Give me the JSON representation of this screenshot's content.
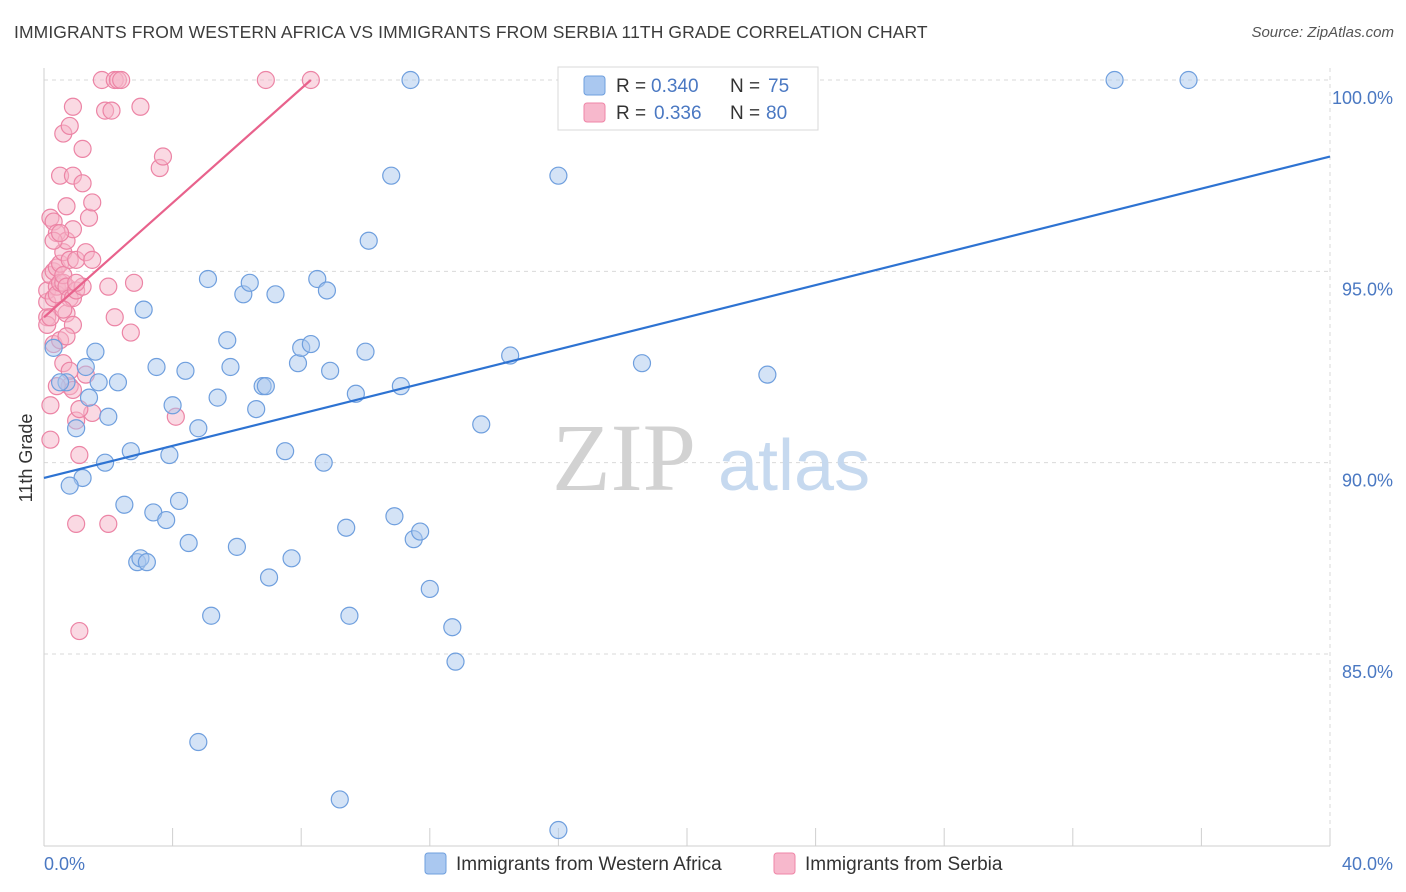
{
  "header": {
    "title": "IMMIGRANTS FROM WESTERN AFRICA VS IMMIGRANTS FROM SERBIA 11TH GRADE CORRELATION CHART",
    "source": "Source: ZipAtlas.com"
  },
  "watermark": {
    "zip": "ZIP",
    "atlas": "atlas"
  },
  "legend": {
    "rows": [
      {
        "r_label": "R = ",
        "r_value": "0.340",
        "n_label": "N = ",
        "n_value": "75",
        "color": "#aac8f0",
        "stroke": "#6f9fde"
      },
      {
        "r_label": "R = ",
        "r_value": "0.336",
        "n_label": "N = ",
        "n_value": "80",
        "color": "#f7b8cc",
        "stroke": "#ef86a7"
      }
    ]
  },
  "bottom_legend": [
    {
      "label": "Immigrants from Western Africa",
      "color": "#aac8f0",
      "stroke": "#6f9fde"
    },
    {
      "label": "Immigrants from Serbia",
      "color": "#f7b8cc",
      "stroke": "#ef86a7"
    }
  ],
  "colors": {
    "blue_fill": "#a9c7ee",
    "blue_stroke": "#6f9fde",
    "blue_line": "#2e73d2",
    "pink_fill": "#f5b3c7",
    "pink_stroke": "#ec84a5",
    "pink_line": "#e8628c",
    "grid": "#d9d9d9",
    "tick_text": "#4a78c2"
  },
  "chart_data": {
    "type": "scatter",
    "title": "IMMIGRANTS FROM WESTERN AFRICA VS IMMIGRANTS FROM SERBIA 11TH GRADE CORRELATION CHART",
    "xlabel": "",
    "ylabel": "11th Grade",
    "xlim": [
      0,
      40
    ],
    "ylim": [
      80.0,
      100.4
    ],
    "x_tick_labels": [
      "0.0%",
      "40.0%"
    ],
    "y_ticks": [
      85,
      90,
      95,
      100
    ],
    "y_tick_labels": [
      "85.0%",
      "90.0%",
      "95.0%",
      "100.0%"
    ],
    "grid": true,
    "legend_placement": "top-center",
    "series": [
      {
        "name": "Immigrants from Western Africa",
        "R": 0.34,
        "N": 75,
        "trend": {
          "x": [
            0,
            40
          ],
          "y": [
            89.6,
            98.0
          ]
        },
        "points": [
          [
            0.3,
            93.0
          ],
          [
            0.7,
            92.1
          ],
          [
            1.0,
            90.9
          ],
          [
            1.2,
            89.6
          ],
          [
            1.4,
            91.7
          ],
          [
            1.6,
            92.9
          ],
          [
            1.7,
            92.1
          ],
          [
            1.9,
            90.0
          ],
          [
            2.3,
            92.1
          ],
          [
            2.5,
            88.9
          ],
          [
            2.7,
            90.3
          ],
          [
            2.9,
            87.4
          ],
          [
            3.0,
            87.5
          ],
          [
            3.2,
            87.4
          ],
          [
            3.4,
            88.7
          ],
          [
            3.5,
            92.5
          ],
          [
            3.8,
            88.5
          ],
          [
            3.9,
            90.2
          ],
          [
            4.0,
            91.5
          ],
          [
            4.2,
            89.0
          ],
          [
            4.4,
            92.4
          ],
          [
            4.5,
            87.9
          ],
          [
            4.8,
            90.9
          ],
          [
            5.1,
            94.8
          ],
          [
            5.2,
            86.0
          ],
          [
            5.4,
            91.7
          ],
          [
            5.7,
            93.2
          ],
          [
            5.8,
            92.5
          ],
          [
            6.0,
            87.8
          ],
          [
            6.2,
            94.4
          ],
          [
            6.4,
            94.7
          ],
          [
            6.6,
            91.4
          ],
          [
            6.8,
            92.0
          ],
          [
            7.0,
            87.0
          ],
          [
            7.2,
            94.4
          ],
          [
            7.5,
            90.3
          ],
          [
            7.7,
            87.5
          ],
          [
            7.9,
            92.6
          ],
          [
            8.0,
            93.0
          ],
          [
            8.3,
            93.1
          ],
          [
            8.5,
            94.8
          ],
          [
            8.7,
            90.0
          ],
          [
            8.8,
            94.5
          ],
          [
            8.9,
            92.4
          ],
          [
            9.2,
            81.2
          ],
          [
            9.4,
            88.3
          ],
          [
            9.5,
            86.0
          ],
          [
            9.7,
            91.8
          ],
          [
            10.0,
            92.9
          ],
          [
            10.1,
            95.8
          ],
          [
            10.8,
            97.5
          ],
          [
            10.9,
            88.6
          ],
          [
            11.1,
            92.0
          ],
          [
            11.4,
            100.0
          ],
          [
            11.5,
            88.0
          ],
          [
            11.7,
            88.2
          ],
          [
            12.0,
            86.7
          ],
          [
            12.7,
            85.7
          ],
          [
            12.8,
            84.8
          ],
          [
            13.6,
            91.0
          ],
          [
            14.5,
            92.8
          ],
          [
            16.0,
            80.4
          ],
          [
            16.0,
            97.5
          ],
          [
            16.6,
            100.0
          ],
          [
            18.6,
            92.6
          ],
          [
            22.5,
            92.3
          ],
          [
            33.3,
            100.0
          ],
          [
            35.6,
            100.0
          ],
          [
            4.8,
            82.7
          ],
          [
            0.5,
            92.1
          ],
          [
            0.8,
            89.4
          ],
          [
            1.3,
            92.5
          ],
          [
            2.0,
            91.2
          ],
          [
            6.9,
            92.0
          ],
          [
            3.1,
            94.0
          ]
        ]
      },
      {
        "name": "Immigrants from Serbia",
        "R": 0.336,
        "N": 80,
        "trend": {
          "x": [
            0,
            8.3
          ],
          "y": [
            93.8,
            100.0
          ]
        },
        "points": [
          [
            0.1,
            93.8
          ],
          [
            0.1,
            94.2
          ],
          [
            0.1,
            94.5
          ],
          [
            0.1,
            93.6
          ],
          [
            0.2,
            96.4
          ],
          [
            0.2,
            94.9
          ],
          [
            0.2,
            93.8
          ],
          [
            0.2,
            91.5
          ],
          [
            0.2,
            90.6
          ],
          [
            0.3,
            96.3
          ],
          [
            0.3,
            95.0
          ],
          [
            0.3,
            94.3
          ],
          [
            0.3,
            93.1
          ],
          [
            0.4,
            96.0
          ],
          [
            0.4,
            95.1
          ],
          [
            0.4,
            94.6
          ],
          [
            0.4,
            94.4
          ],
          [
            0.5,
            97.5
          ],
          [
            0.5,
            95.2
          ],
          [
            0.5,
            94.7
          ],
          [
            0.5,
            93.2
          ],
          [
            0.6,
            98.6
          ],
          [
            0.6,
            95.5
          ],
          [
            0.6,
            94.7
          ],
          [
            0.6,
            94.9
          ],
          [
            0.6,
            92.6
          ],
          [
            0.7,
            96.7
          ],
          [
            0.7,
            95.8
          ],
          [
            0.7,
            94.6
          ],
          [
            0.7,
            93.9
          ],
          [
            0.8,
            98.8
          ],
          [
            0.8,
            95.3
          ],
          [
            0.8,
            94.3
          ],
          [
            0.8,
            92.0
          ],
          [
            0.9,
            99.3
          ],
          [
            0.9,
            97.5
          ],
          [
            0.9,
            96.1
          ],
          [
            0.9,
            94.3
          ],
          [
            0.9,
            93.6
          ],
          [
            1.0,
            95.3
          ],
          [
            1.0,
            94.5
          ],
          [
            1.0,
            91.1
          ],
          [
            1.0,
            88.4
          ],
          [
            1.1,
            90.2
          ],
          [
            1.1,
            85.6
          ],
          [
            1.2,
            98.2
          ],
          [
            1.2,
            97.3
          ],
          [
            1.2,
            94.6
          ],
          [
            1.3,
            95.5
          ],
          [
            1.4,
            96.4
          ],
          [
            1.5,
            96.8
          ],
          [
            1.5,
            95.3
          ],
          [
            1.5,
            91.3
          ],
          [
            1.8,
            100.0
          ],
          [
            1.9,
            99.2
          ],
          [
            2.0,
            94.6
          ],
          [
            2.0,
            88.4
          ],
          [
            2.1,
            99.2
          ],
          [
            2.2,
            93.8
          ],
          [
            2.2,
            100.0
          ],
          [
            2.3,
            100.0
          ],
          [
            2.4,
            100.0
          ],
          [
            2.7,
            93.4
          ],
          [
            2.8,
            94.7
          ],
          [
            3.0,
            99.3
          ],
          [
            3.6,
            97.7
          ],
          [
            3.7,
            98.0
          ],
          [
            4.1,
            91.2
          ],
          [
            6.9,
            100.0
          ],
          [
            8.3,
            100.0
          ],
          [
            0.3,
            95.8
          ],
          [
            0.5,
            96.0
          ],
          [
            0.7,
            93.3
          ],
          [
            1.0,
            94.7
          ],
          [
            1.3,
            92.3
          ],
          [
            0.4,
            92.0
          ],
          [
            0.9,
            91.9
          ],
          [
            1.1,
            91.4
          ],
          [
            0.6,
            94.0
          ],
          [
            0.8,
            92.4
          ]
        ]
      }
    ]
  }
}
